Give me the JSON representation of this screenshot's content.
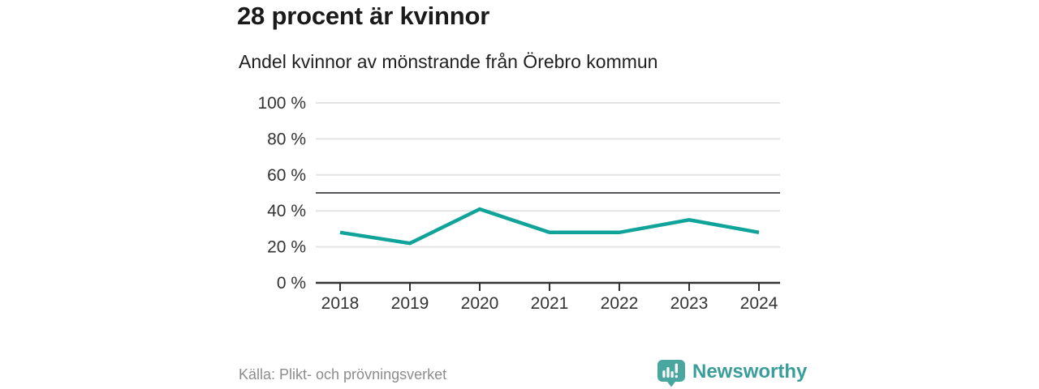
{
  "header": {
    "title": "28 procent är kvinnor",
    "subtitle": "Andel kvinnor av mönstrande från Örebro kommun"
  },
  "chart_data": {
    "type": "line",
    "title": "28 procent är kvinnor",
    "subtitle": "Andel kvinnor av mönstrande från Örebro kommun",
    "categories": [
      "2018",
      "2019",
      "2020",
      "2021",
      "2022",
      "2023",
      "2024"
    ],
    "series": [
      {
        "name": "Andel kvinnor av mönstrande",
        "values": [
          28,
          22,
          41,
          28,
          28,
          35,
          28
        ]
      }
    ],
    "unit": "%",
    "xlabel": "",
    "ylabel": "",
    "ylim": [
      0,
      100
    ],
    "yticks": [
      0,
      20,
      40,
      60,
      80,
      100
    ],
    "ytick_labels": [
      "0 %",
      "20 %",
      "40 %",
      "60 %",
      "80 %",
      "100 %"
    ],
    "reference_line": 50,
    "grid": true,
    "legend": "none",
    "colors": {
      "line": "#0fa39a",
      "grid": "#e4e4e4",
      "axis": "#333333",
      "reference_line": "#55555d",
      "tick_label": "#333333"
    }
  },
  "footer": {
    "source": "Källa: Plikt- och prövningsverket",
    "brand": {
      "name": "Newsworthy",
      "icon": "newsworthy-chart-pin-icon",
      "icon_color": "#4aa7a0",
      "text_color": "#399e99"
    }
  }
}
